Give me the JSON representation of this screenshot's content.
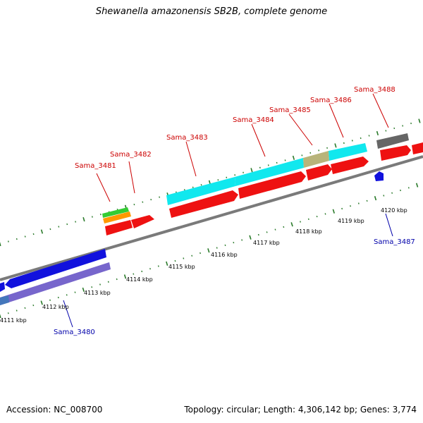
{
  "title": "Shewanella amazonensis SB2B, complete genome",
  "footer": {
    "accession": "Accession: NC_008700",
    "stats": "Topology: circular; Length: 4,306,142 bp; Genes: 3,774"
  },
  "colors": {
    "forward_label": "#cc0000",
    "reverse_label": "#0000aa",
    "backbone": "#808080",
    "tick": "#2a7a2a",
    "cds": "#ee1111",
    "cyan": "#11e8ee",
    "blue": "#1111dd",
    "purple": "#7766cc",
    "olive": "#b8b47a",
    "gray": "#666666",
    "green": "#33cc33",
    "orange": "#ff9900"
  },
  "kbp_labels": [
    "4111 kbp",
    "4112 kbp",
    "4113 kbp",
    "4114 kbp",
    "4115 kbp",
    "4116 kbp",
    "4117 kbp",
    "4118 kbp",
    "4119 kbp",
    "4120 kbp"
  ],
  "genes_forward": [
    "Sama_3481",
    "Sama_3482",
    "Sama_3483",
    "Sama_3484",
    "Sama_3485",
    "Sama_3486",
    "Sama_3488"
  ],
  "genes_reverse": [
    "Sama_3480",
    "Sama_3487"
  ]
}
